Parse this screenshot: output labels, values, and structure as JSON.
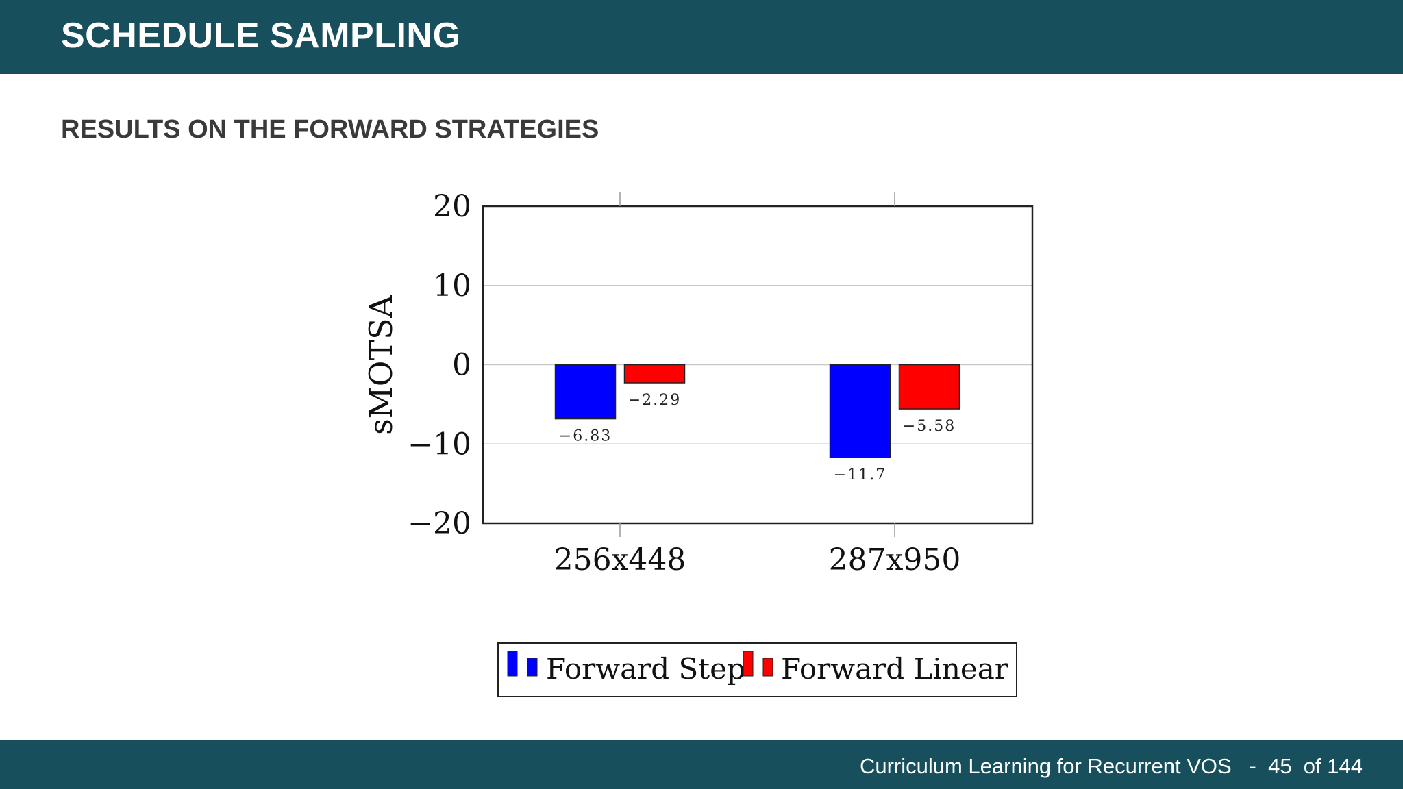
{
  "slide": {
    "title": "SCHEDULE SAMPLING",
    "section_heading": "RESULTS ON THE FORWARD STRATEGIES",
    "colors": {
      "bar": "#174f5c",
      "heading": "#3a3a3a"
    }
  },
  "footer": {
    "text": "Curriculum Learning for Recurrent VOS",
    "separator": "-",
    "page": "45",
    "of_label": "of 144"
  },
  "chart_data": {
    "type": "bar",
    "categories": [
      "256x448",
      "287x950"
    ],
    "series": [
      {
        "name": "Forward Step",
        "values": [
          -6.83,
          -11.7
        ],
        "color": "#0000ff"
      },
      {
        "name": "Forward Linear",
        "values": [
          -2.29,
          -5.58
        ],
        "color": "#ff0000"
      }
    ],
    "value_labels": [
      [
        "−6.83",
        "−11.7"
      ],
      [
        "−2.29",
        "−5.58"
      ]
    ],
    "ylabel": "sMOTSA",
    "ylim": [
      -20,
      20
    ],
    "yticks": [
      20,
      10,
      0,
      -10,
      -20
    ],
    "ytick_labels": [
      "20",
      "10",
      "0",
      "−10",
      "−20"
    ],
    "grid": true,
    "legend": "below"
  }
}
